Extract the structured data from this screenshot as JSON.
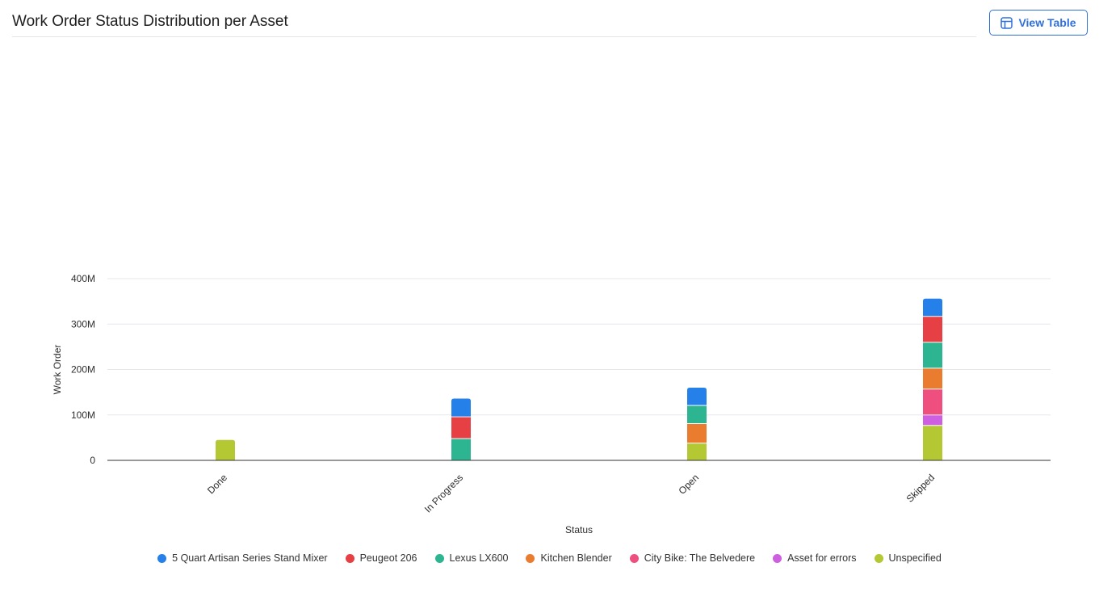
{
  "header": {
    "title": "Work Order Status Distribution per Asset",
    "view_table_label": "View Table",
    "view_table_icon": "table-icon"
  },
  "chart_data": {
    "type": "bar",
    "stacked": true,
    "title": "Work Order Status Distribution per Asset",
    "xlabel": "Status",
    "ylabel": "Work Order",
    "ylim": [
      0,
      400000000
    ],
    "yticks": [
      0,
      100000000,
      200000000,
      300000000,
      400000000
    ],
    "ytick_labels": [
      "0",
      "100M",
      "200M",
      "300M",
      "400M"
    ],
    "grid": true,
    "legend_position": "bottom",
    "categories": [
      "Done",
      "In Progress",
      "Open",
      "Skipped"
    ],
    "series": [
      {
        "name": "Unspecified",
        "color": "#b3c833",
        "values": [
          45000000,
          0,
          37000000,
          76000000
        ]
      },
      {
        "name": "Asset for errors",
        "color": "#cd5fe0",
        "values": [
          0,
          0,
          0,
          23000000
        ]
      },
      {
        "name": "City Bike: The Belvedere",
        "color": "#ef4f7e",
        "values": [
          0,
          0,
          0,
          57000000
        ]
      },
      {
        "name": "Kitchen Blender",
        "color": "#ea7c2f",
        "values": [
          0,
          0,
          43000000,
          46000000
        ]
      },
      {
        "name": "Lexus LX600",
        "color": "#2cb590",
        "values": [
          0,
          47000000,
          40000000,
          57000000
        ]
      },
      {
        "name": "Peugeot 206",
        "color": "#e63f44",
        "values": [
          0,
          48000000,
          0,
          57000000
        ]
      },
      {
        "name": "5 Quart Artisan Series Stand Mixer",
        "color": "#2680ea",
        "values": [
          0,
          41000000,
          40000000,
          40000000
        ]
      }
    ]
  },
  "legend": [
    {
      "label": "5 Quart Artisan Series Stand Mixer",
      "color": "#2680ea"
    },
    {
      "label": "Peugeot 206",
      "color": "#e63f44"
    },
    {
      "label": "Lexus LX600",
      "color": "#2cb590"
    },
    {
      "label": "Kitchen Blender",
      "color": "#ea7c2f"
    },
    {
      "label": "City Bike: The Belvedere",
      "color": "#ef4f7e"
    },
    {
      "label": "Asset for errors",
      "color": "#cd5fe0"
    },
    {
      "label": "Unspecified",
      "color": "#b3c833"
    }
  ]
}
